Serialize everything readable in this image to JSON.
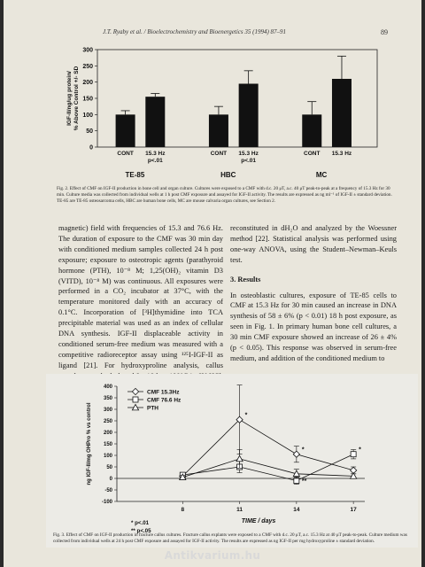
{
  "header": {
    "running_head": "J.T. Ryaby et al. / Bioelectrochemistry and Bioenergetics 35 (1994) 87–91",
    "page_number": "89"
  },
  "figure2": {
    "caption": "Fig. 2. Effect of CMF on IGF-II production in bone cell and organ culture. Cultures were exposed to a CMF with d.c. 20 μT, a.c. 40 μT peak-to-peak at a frequency of 15.3 Hz for 30 min. Culture media was collected from individual wells at 1 h post CMF exposure and assayed for IGF-II activity. The results are expressed as ng ml⁻¹ of IGF-II ± standard deviation. TE-85 are TE-85 osteosarcoma cells, HBC are human bone cells, MC are mouse calvaria organ cultures, see Section 2."
  },
  "figure3": {
    "caption": "Fig. 3. Effect of CMF on IGF-II production in fracture callus cultures. Fracture callus explants were exposed to a CMF with d.c. 20 μT, a.c. 15.3 Hz at 40 μT peak-to-peak. Culture medium was collected from individual wells at 24 h post CMF exposure and assayed for IGF-II activity. The results are expressed as ng IGF-II per mg hydroxyproline ± standard deviation."
  },
  "body": {
    "left_paragraphs": [
      "magnetic) field with frequencies of 15.3 and 76.6 Hz. The duration of exposure to the CMF was 30 min day with conditioned medium samples collected 24 h post exposure; exposure to osteotropic agents (parathyroid hormone (PTH), 10⁻⁸ M; 1,25(OH)₂ vitamin D3 (VITD), 10⁻⁸ M) was continuous. All exposures were performed in a CO₂ incubator at 37°C, with the temperature monitored daily with an accuracy of 0.1°C. Incorporation of [³H]thymidine into TCA precipitable material was used as an index of cellular DNA synthesis. IGF-II displaceable activity in conditioned serum-free medium was measured with a competitive radioreceptor assay using ¹²⁵I-IGF-II as ligand [21]. For hydroxyproline analysis, callus samples were hydrolyzed for 18 h at 100°C in 6N HCl, and dried samples were"
    ],
    "right_paragraphs": [
      "reconstituted in dH₂O and analyzed by the Woessner method [22]. Statistical analysis was performed using one-way ANOVA, using the Student–Newman–Keuls test."
    ],
    "section_heading": "3. Results",
    "results_paragraph": "In osteoblastic cultures, exposure of TE-85 cells to CMF at 15.3 Hz for 30 min caused an increase in DNA synthesis of 58 ± 6% (p < 0.01) 18 h post exposure, as seen in Fig. 1. In primary human bone cell cultures, a 30 min CMF exposure showed an increase of 26 ± 4% (p < 0.05). This response was observed in serum-free medium, and addition of the conditioned medium to"
  },
  "watermark": "Antikvarium.hu",
  "chart_data": [
    {
      "type": "bar",
      "ylabel": "IGF-II/ng/ug protein/ % Above Control +/- SD",
      "ylim": [
        0,
        300
      ],
      "yticks": [
        0,
        50,
        100,
        150,
        200,
        250,
        300
      ],
      "groups": [
        {
          "name": "TE-85",
          "bars": [
            {
              "label": "CONT",
              "value": 100,
              "err": 12
            },
            {
              "label": "15.3 Hz",
              "value": 155,
              "err": 10
            }
          ],
          "sig": "p<.01"
        },
        {
          "name": "HBC",
          "bars": [
            {
              "label": "CONT",
              "value": 100,
              "err": 25
            },
            {
              "label": "15.3 Hz",
              "value": 195,
              "err": 40
            }
          ],
          "sig": "p<.01"
        },
        {
          "name": "MC",
          "bars": [
            {
              "label": "CONT",
              "value": 100,
              "err": 40
            },
            {
              "label": "15.3 Hz",
              "value": 210,
              "err": 70
            }
          ],
          "sig": ""
        }
      ],
      "colors": {
        "bar": "#111111"
      }
    },
    {
      "type": "line",
      "ylabel": "ng IGF-II/mg OHPro % vs control",
      "xlabel": "TIME / days",
      "x": [
        8,
        11,
        14,
        17
      ],
      "ylim": [
        -100,
        400
      ],
      "yticks": [
        -100,
        -50,
        0,
        50,
        100,
        150,
        200,
        250,
        300,
        350,
        400
      ],
      "legend_position": "top-left",
      "series": [
        {
          "name": "CMF 15.3Hz",
          "marker": "diamond",
          "values": [
            10,
            255,
            105,
            35
          ],
          "err": [
            8,
            150,
            35,
            15
          ]
        },
        {
          "name": "CMF 76.6 Hz",
          "marker": "square",
          "values": [
            15,
            50,
            -10,
            105
          ],
          "err": [
            8,
            25,
            15,
            20
          ]
        },
        {
          "name": "PTH",
          "marker": "triangle",
          "values": [
            5,
            85,
            20,
            10
          ],
          "err": [
            8,
            40,
            20,
            10
          ]
        }
      ],
      "annotations": [
        {
          "x": 11,
          "y": 255,
          "text": "*"
        },
        {
          "x": 14,
          "y": 105,
          "text": "*"
        },
        {
          "x": 17,
          "y": 105,
          "text": "*"
        },
        {
          "x": 14,
          "y": -30,
          "text": "**"
        }
      ],
      "footnotes": [
        "* p<.01",
        "** p<.05"
      ]
    }
  ]
}
